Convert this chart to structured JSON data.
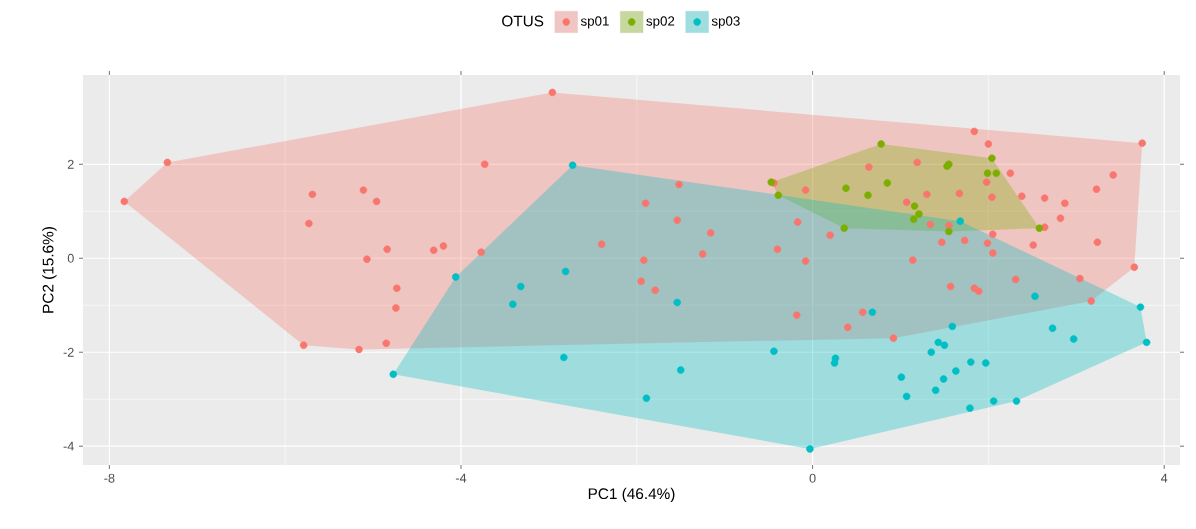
{
  "chart_data": {
    "type": "scatter",
    "xlabel": "PC1 (46.4%)",
    "ylabel": "PC2 (15.6%)",
    "legend_title": "OTUS",
    "legend": "top",
    "grid": true,
    "xlim": [
      -8.3,
      4.18
    ],
    "ylim": [
      -4.4,
      3.9
    ],
    "xticks": [
      -8,
      -4,
      0,
      4
    ],
    "yticks": [
      -4,
      -2,
      0,
      2
    ],
    "series": [
      {
        "type": "area",
        "color": "#f8766d",
        "x": [
          -7.83,
          -7.34,
          -2.96,
          3.75,
          3.66,
          3.17,
          0.92,
          -5.16,
          -5.79
        ],
        "values": [
          1.21,
          2.04,
          3.53,
          2.45,
          -0.19,
          -0.91,
          -1.7,
          -1.94,
          -1.85
        ]
      },
      {
        "type": "area",
        "color": "#7cae00",
        "x": [
          -0.47,
          0.78,
          2.04,
          2.58,
          1.55,
          0.36,
          -0.39
        ],
        "values": [
          1.62,
          2.43,
          2.13,
          0.64,
          0.57,
          0.64,
          1.34
        ]
      },
      {
        "type": "area",
        "color": "#00bfc4",
        "x": [
          -2.73,
          1.68,
          3.73,
          3.8,
          2.32,
          -0.03,
          -4.77,
          -4.06
        ],
        "values": [
          1.98,
          0.79,
          -1.04,
          -1.79,
          -3.04,
          -4.06,
          -2.47,
          -0.4
        ]
      },
      {
        "name": "sp01",
        "color": "#f8766d",
        "marker": "circle",
        "x": [
          -7.83,
          -7.34,
          -2.96,
          -3.73,
          -5.69,
          -5.11,
          -4.96,
          -5.73,
          -4.84,
          -5.07,
          -4.31,
          -4.2,
          -4.73,
          -4.74,
          -5.79,
          -5.16,
          -4.85,
          -3.77,
          -2.4,
          -1.52,
          -1.9,
          -1.54,
          -1.16,
          -1.25,
          -1.92,
          -1.95,
          -1.79,
          -0.44,
          -0.08,
          -0.17,
          -0.4,
          -0.08,
          -0.18,
          1.84,
          2.0,
          3.75,
          0.64,
          1.19,
          1.07,
          1.3,
          1.67,
          1.98,
          2.04,
          2.25,
          2.38,
          2.64,
          2.87,
          3.42,
          3.23,
          2.82,
          2.64,
          0.2,
          1.34,
          1.55,
          1.47,
          1.73,
          1.99,
          2.05,
          2.05,
          2.51,
          3.24,
          3.66,
          1.14,
          1.57,
          1.84,
          1.89,
          2.31,
          3.04,
          3.17,
          0.57,
          0.4,
          0.92
        ],
        "values": [
          1.21,
          2.04,
          3.53,
          2.0,
          1.36,
          1.45,
          1.21,
          0.74,
          0.19,
          -0.02,
          0.17,
          0.26,
          -0.64,
          -1.06,
          -1.85,
          -1.94,
          -1.81,
          0.13,
          0.3,
          1.57,
          1.17,
          0.81,
          0.54,
          0.09,
          -0.04,
          -0.49,
          -0.68,
          1.6,
          1.45,
          0.77,
          0.19,
          -0.06,
          -1.21,
          2.7,
          2.43,
          2.45,
          1.94,
          2.04,
          1.19,
          1.36,
          1.38,
          1.62,
          1.3,
          1.81,
          1.32,
          1.28,
          1.17,
          1.77,
          1.47,
          0.85,
          0.66,
          0.49,
          0.72,
          0.7,
          0.34,
          0.38,
          0.32,
          0.51,
          0.11,
          0.28,
          0.34,
          -0.19,
          -0.04,
          -0.6,
          -0.64,
          -0.7,
          -0.45,
          -0.43,
          -0.91,
          -1.15,
          -1.47,
          -1.7
        ]
      },
      {
        "name": "sp02",
        "color": "#7cae00",
        "marker": "circle",
        "x": [
          0.78,
          0.38,
          0.63,
          0.85,
          0.36,
          1.55,
          1.53,
          2.04,
          1.99,
          2.09,
          1.16,
          1.21,
          1.15,
          1.55,
          2.58,
          -0.39,
          -0.47
        ],
        "values": [
          2.43,
          1.49,
          1.34,
          1.6,
          0.64,
          2.0,
          1.96,
          2.13,
          1.81,
          1.81,
          1.11,
          0.94,
          0.83,
          0.57,
          0.64,
          1.34,
          1.62
        ]
      },
      {
        "name": "sp03",
        "color": "#00bfc4",
        "marker": "circle",
        "x": [
          -4.06,
          -4.77,
          -2.73,
          -2.81,
          -3.32,
          -3.41,
          -1.54,
          -2.83,
          -1.5,
          -1.89,
          -0.44,
          -0.03,
          1.68,
          2.53,
          0.68,
          1.59,
          2.73,
          2.97,
          3.73,
          3.8,
          1.43,
          1.5,
          1.35,
          0.26,
          0.25,
          1.01,
          1.07,
          1.49,
          1.63,
          1.8,
          1.97,
          1.4,
          1.79,
          2.06,
          2.32
        ],
        "values": [
          -0.4,
          -2.47,
          1.98,
          -0.28,
          -0.6,
          -0.98,
          -0.94,
          -2.11,
          -2.38,
          -2.98,
          -1.98,
          -4.06,
          0.79,
          -0.81,
          -1.15,
          -1.45,
          -1.49,
          -1.72,
          -1.04,
          -1.79,
          -1.79,
          -1.85,
          -2.0,
          -2.13,
          -2.23,
          -2.53,
          -2.94,
          -2.57,
          -2.4,
          -2.21,
          -2.23,
          -2.81,
          -3.19,
          -3.04,
          -3.04
        ]
      }
    ]
  }
}
